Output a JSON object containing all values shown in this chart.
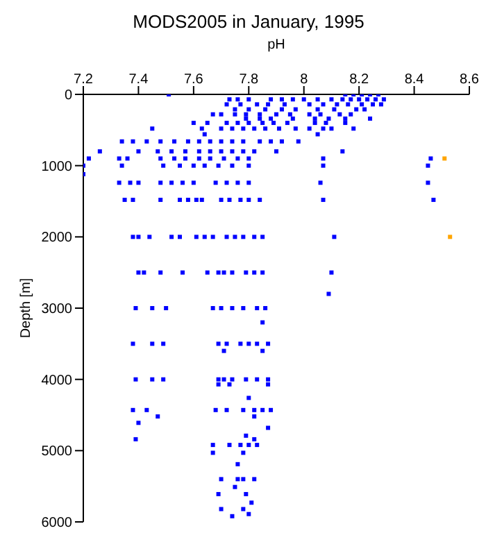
{
  "chart_data": {
    "type": "scatter",
    "title": "MODS2005 in January, 1995",
    "xlabel": "pH",
    "ylabel": "Depth [m]",
    "xlim": [
      7.2,
      8.6
    ],
    "xticks": [
      7.2,
      7.4,
      7.6,
      7.8,
      8,
      8.2,
      8.4,
      8.6
    ],
    "ylim": [
      6000,
      0
    ],
    "yticks": [
      0,
      1000,
      2000,
      3000,
      4000,
      5000,
      6000
    ],
    "marker": "square",
    "series": [
      {
        "color": "#0000ff",
        "x": [
          7.51,
          8.15,
          8.18,
          8.21,
          8.24,
          8.27,
          7.73,
          7.76,
          7.8,
          7.88,
          7.92,
          7.96,
          8.0,
          8.05,
          8.1,
          8.14,
          8.17,
          8.2,
          8.23,
          8.26,
          8.29,
          7.72,
          7.77,
          7.83,
          7.87,
          7.93,
          8.02,
          8.07,
          8.12,
          8.16,
          8.21,
          8.25,
          8.28,
          7.75,
          7.8,
          7.86,
          7.92,
          7.97,
          8.05,
          8.11,
          8.19,
          8.22,
          7.67,
          7.7,
          7.75,
          7.79,
          7.84,
          7.9,
          7.95,
          8.02,
          8.06,
          8.13,
          8.17,
          7.79,
          7.84,
          7.88,
          7.96,
          8.04,
          8.09,
          8.15,
          8.24,
          7.6,
          7.65,
          7.72,
          7.76,
          7.8,
          7.85,
          7.89,
          7.94,
          8.04,
          8.08,
          8.15,
          7.45,
          7.63,
          7.7,
          7.74,
          7.78,
          7.82,
          7.86,
          7.91,
          7.97,
          8.02,
          8.07,
          8.1,
          8.18,
          7.64,
          8.05,
          7.34,
          7.38,
          7.43,
          7.48,
          7.53,
          7.58,
          7.62,
          7.66,
          7.7,
          7.74,
          7.78,
          7.84,
          7.88,
          7.92,
          7.98,
          7.26,
          7.4,
          7.47,
          7.52,
          7.57,
          7.62,
          7.66,
          7.7,
          7.74,
          7.78,
          7.82,
          7.9,
          8.14,
          7.22,
          7.33,
          7.36,
          7.48,
          7.53,
          7.57,
          7.62,
          7.66,
          7.71,
          7.76,
          7.8,
          8.07,
          8.46,
          7.2,
          7.34,
          7.49,
          7.55,
          7.6,
          7.64,
          7.69,
          7.74,
          7.8,
          8.07,
          8.45,
          7.2,
          7.33,
          7.37,
          7.4,
          7.48,
          7.52,
          7.56,
          7.6,
          7.68,
          7.72,
          7.76,
          7.8,
          8.06,
          8.45,
          7.35,
          7.38,
          7.48,
          7.55,
          7.58,
          7.61,
          7.63,
          7.7,
          7.73,
          7.77,
          7.8,
          7.84,
          8.07,
          8.47,
          7.38,
          7.4,
          7.44,
          7.52,
          7.55,
          7.61,
          7.64,
          7.67,
          7.72,
          7.75,
          7.78,
          7.82,
          7.85,
          8.11,
          7.4,
          7.42,
          7.48,
          7.56,
          7.65,
          7.69,
          7.71,
          7.74,
          7.79,
          7.82,
          7.85,
          8.1,
          8.09,
          7.39,
          7.45,
          7.5,
          7.67,
          7.7,
          7.74,
          7.78,
          7.83,
          7.86,
          7.85,
          7.38,
          7.45,
          7.49,
          7.69,
          7.72,
          7.77,
          7.8,
          7.83,
          7.87,
          7.71,
          7.85,
          7.39,
          7.45,
          7.49,
          7.69,
          7.71,
          7.74,
          7.79,
          7.83,
          7.87,
          7.69,
          7.73,
          7.87,
          7.8,
          7.38,
          7.43,
          7.68,
          7.72,
          7.78,
          7.82,
          7.85,
          7.88,
          7.47,
          7.82,
          7.4,
          7.87,
          7.79,
          7.39,
          7.82,
          7.67,
          7.73,
          7.77,
          7.8,
          7.83,
          7.67,
          7.78,
          7.76,
          7.7,
          7.76,
          7.78,
          7.82,
          7.75,
          7.69,
          7.79,
          7.81,
          7.7,
          7.78,
          7.8,
          7.74
        ],
        "values": [
          0,
          0,
          0,
          0,
          0,
          0,
          70,
          70,
          70,
          70,
          70,
          70,
          70,
          70,
          70,
          70,
          70,
          70,
          70,
          70,
          70,
          140,
          140,
          140,
          140,
          140,
          140,
          140,
          140,
          140,
          140,
          140,
          140,
          210,
          210,
          210,
          210,
          210,
          210,
          210,
          210,
          210,
          280,
          280,
          280,
          280,
          280,
          280,
          280,
          280,
          280,
          280,
          280,
          340,
          340,
          340,
          340,
          340,
          340,
          340,
          340,
          400,
          400,
          400,
          400,
          400,
          400,
          400,
          400,
          400,
          400,
          400,
          480,
          480,
          480,
          480,
          480,
          480,
          480,
          480,
          480,
          480,
          480,
          480,
          480,
          560,
          560,
          660,
          660,
          660,
          660,
          660,
          660,
          660,
          660,
          660,
          660,
          660,
          660,
          660,
          660,
          660,
          800,
          800,
          800,
          800,
          800,
          800,
          800,
          800,
          800,
          800,
          800,
          800,
          800,
          900,
          900,
          900,
          900,
          900,
          900,
          900,
          900,
          900,
          900,
          900,
          900,
          900,
          1000,
          1000,
          1000,
          1000,
          1000,
          1000,
          1000,
          1000,
          1000,
          1000,
          1000,
          1120,
          1240,
          1240,
          1240,
          1240,
          1240,
          1240,
          1240,
          1240,
          1240,
          1240,
          1240,
          1240,
          1240,
          1480,
          1480,
          1480,
          1480,
          1480,
          1480,
          1480,
          1480,
          1480,
          1480,
          1480,
          1480,
          1480,
          1480,
          2000,
          2000,
          2000,
          2000,
          2000,
          2000,
          2000,
          2000,
          2000,
          2000,
          2000,
          2000,
          2000,
          2000,
          2500,
          2500,
          2500,
          2500,
          2500,
          2500,
          2500,
          2500,
          2500,
          2500,
          2500,
          2500,
          2800,
          3000,
          3000,
          3000,
          3000,
          3000,
          3000,
          3000,
          3000,
          3000,
          3200,
          3500,
          3500,
          3500,
          3500,
          3500,
          3500,
          3500,
          3500,
          3500,
          3600,
          3600,
          4000,
          4000,
          4000,
          4000,
          4000,
          4000,
          4000,
          4000,
          4000,
          4070,
          4070,
          4070,
          4260,
          4430,
          4430,
          4430,
          4430,
          4430,
          4430,
          4430,
          4430,
          4520,
          4520,
          4610,
          4680,
          4790,
          4840,
          4840,
          4920,
          4920,
          4920,
          4920,
          4920,
          5030,
          5030,
          5190,
          5400,
          5400,
          5400,
          5400,
          5510,
          5610,
          5610,
          5730,
          5820,
          5820,
          5890,
          5920
        ]
      },
      {
        "color": "#ffa500",
        "x": [
          8.51,
          8.53
        ],
        "values": [
          900,
          2000
        ]
      }
    ]
  }
}
